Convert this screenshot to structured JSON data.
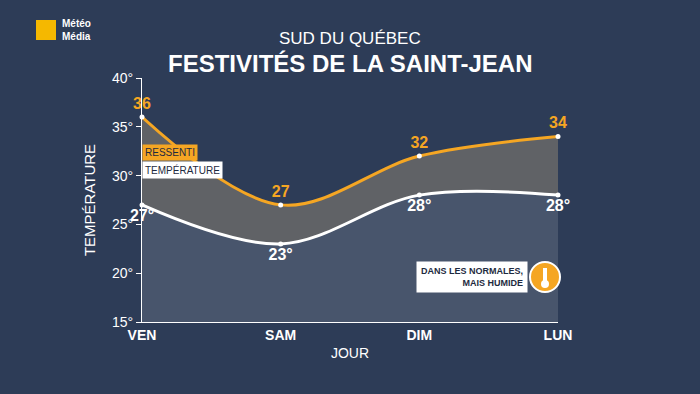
{
  "chart_data": {
    "type": "line",
    "logo": [
      "Météo",
      "Média"
    ],
    "subtitle": "SUD DU QUÉBEC",
    "title": "FESTIVITÉS DE LA SAINT-JEAN",
    "x_label": "JOUR",
    "y_label": "TEMPÉRATURE",
    "categories": [
      "VEN",
      "SAM",
      "DIM",
      "LUN"
    ],
    "series": [
      {
        "name": "TEMPÉRATURE",
        "color": "#ffffff",
        "values": [
          27,
          23,
          28,
          28
        ],
        "value_labels": [
          "27°",
          "23°",
          "28°",
          "28°"
        ]
      },
      {
        "name": "RESSENTI",
        "color": "#f5a623",
        "values": [
          36,
          27,
          32,
          34
        ]
      }
    ],
    "ylim": [
      15,
      40
    ],
    "yticks": [
      {
        "value": 15,
        "label": "15°"
      },
      {
        "value": 20,
        "label": "20°"
      },
      {
        "value": 25,
        "label": "25°"
      },
      {
        "value": 30,
        "label": "30°"
      },
      {
        "value": 35,
        "label": "35°"
      },
      {
        "value": 40,
        "label": "40°"
      }
    ],
    "grid": false,
    "data_labels": true,
    "legend": "left",
    "marker": "circle",
    "annotation": [
      "DANS LES NORMALES,",
      "MAIS HUMIDE"
    ]
  }
}
